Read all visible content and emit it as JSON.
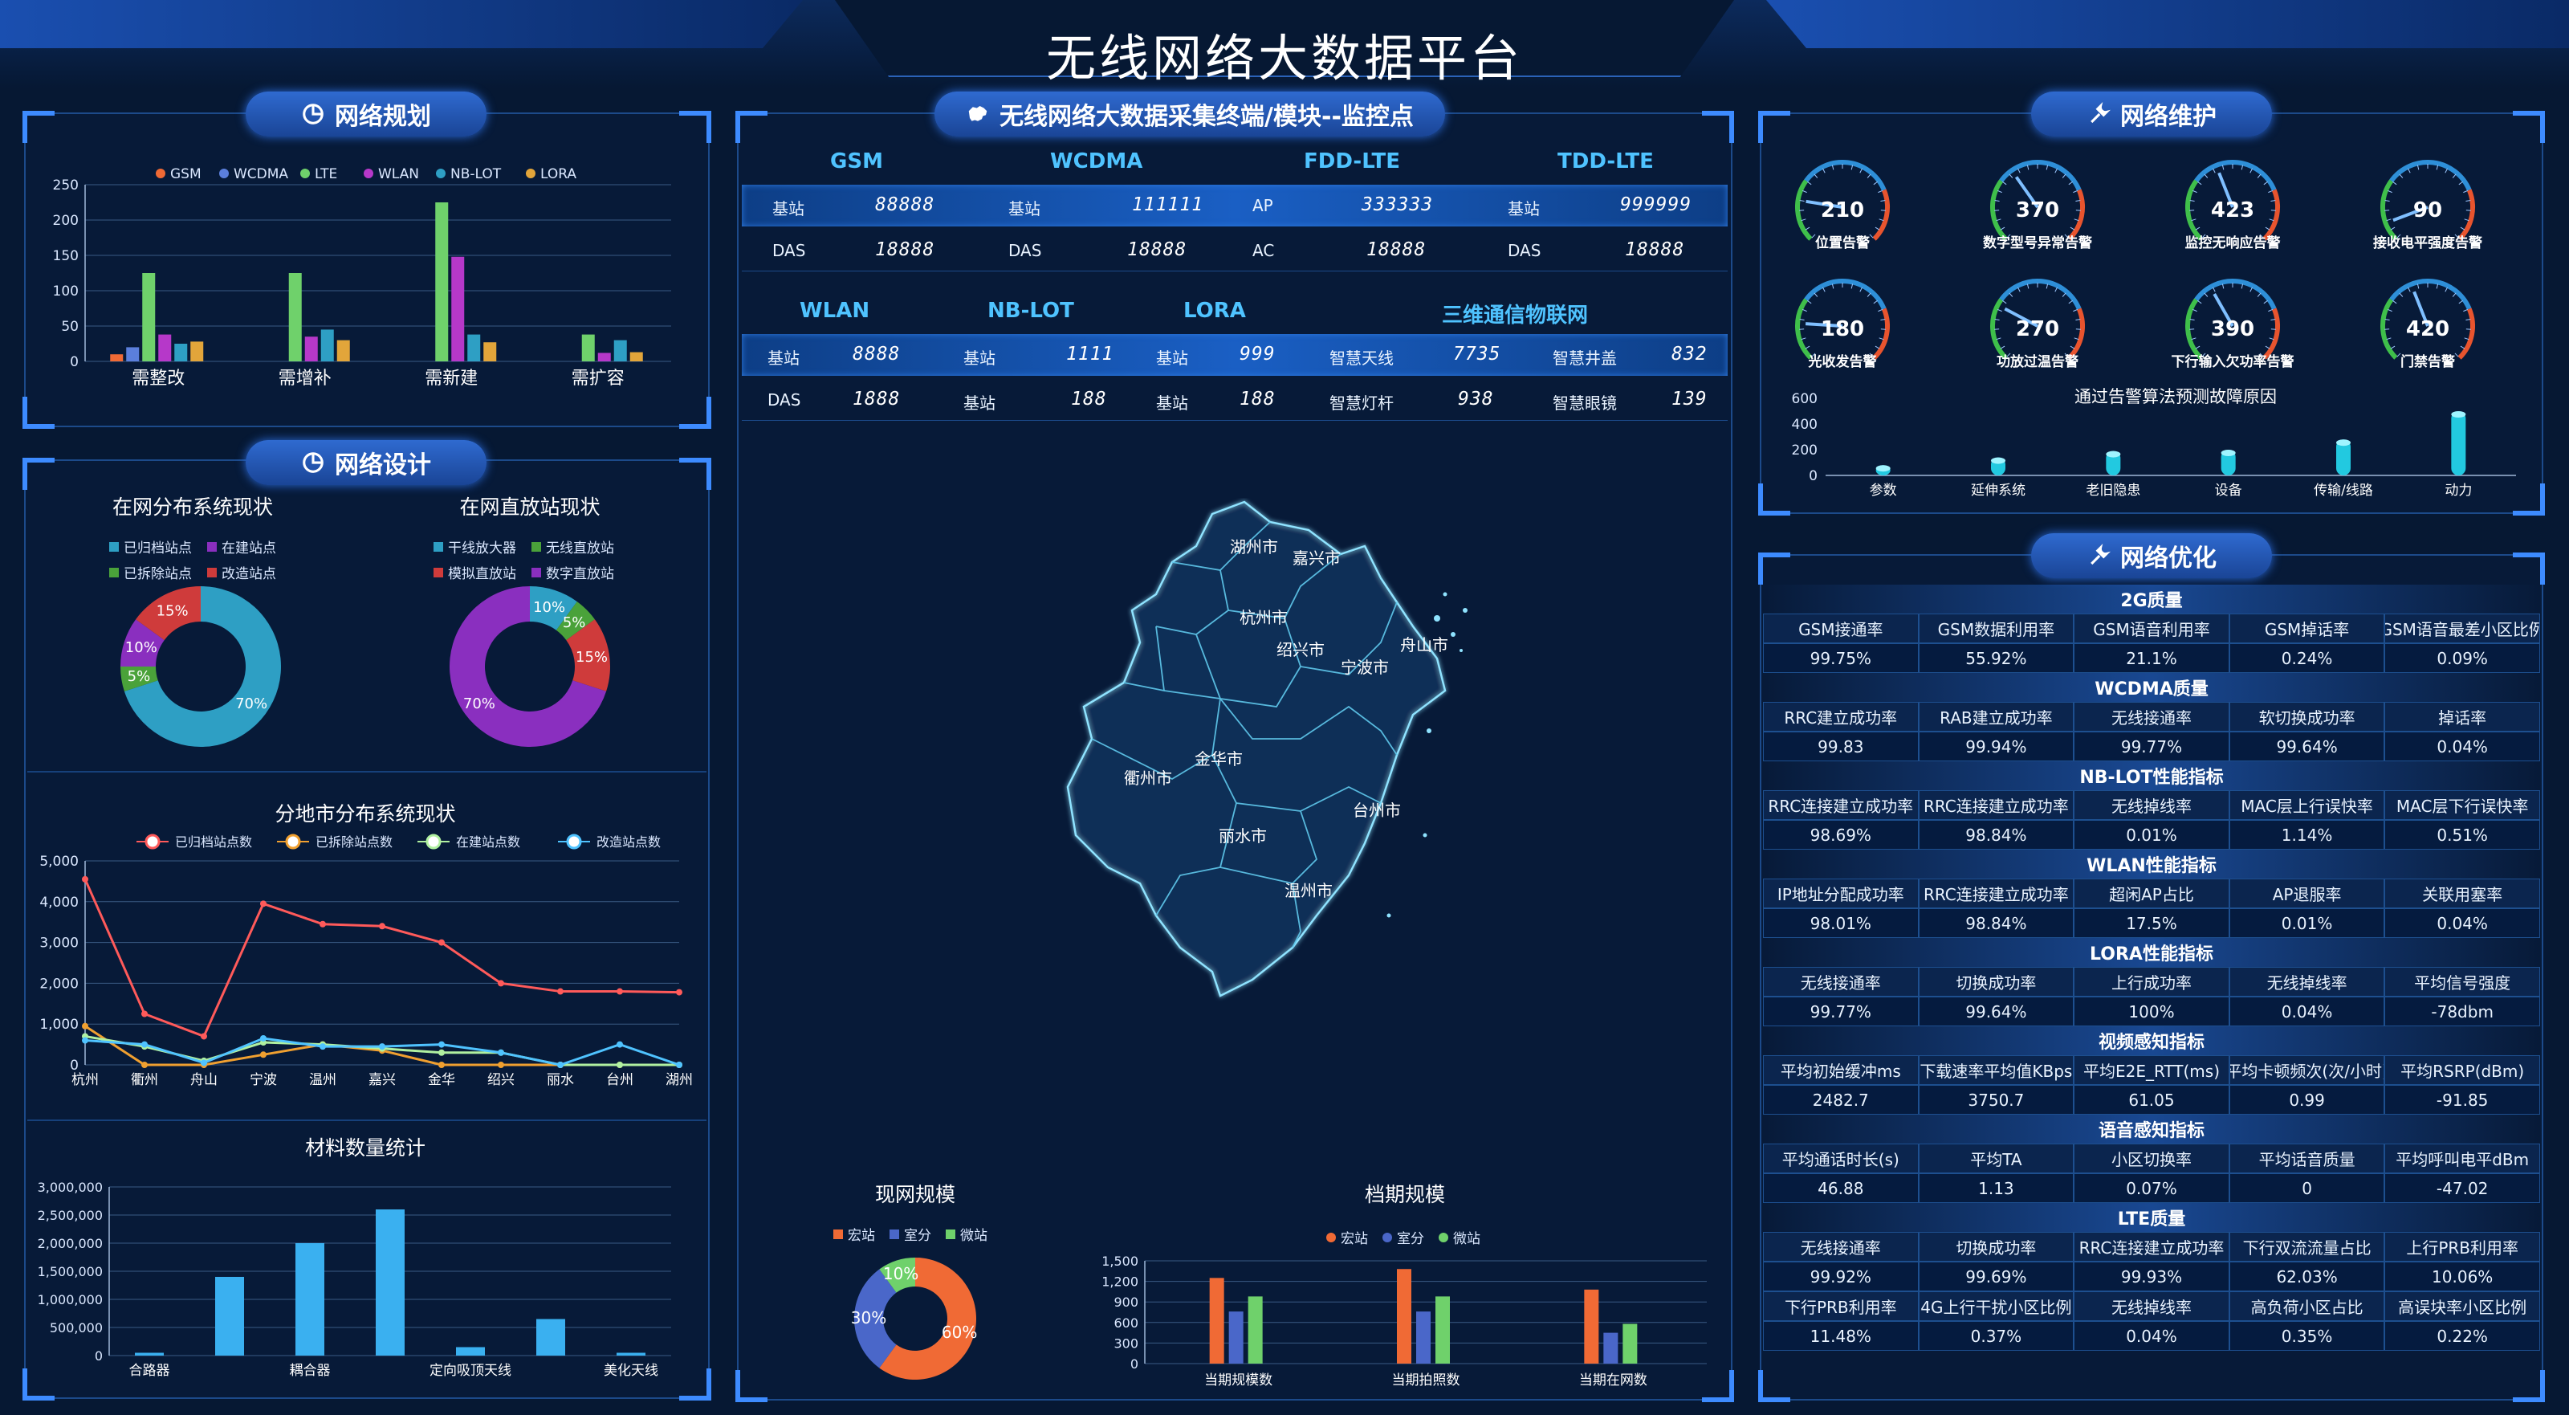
{
  "page_title": "无线网络大数据平台",
  "colors": {
    "accent": "#3d8bff",
    "bg": "#061833",
    "cyan": "#4fc3ff"
  },
  "planning": {
    "title": "网络规划",
    "icon": "pie-chart-icon",
    "chart_data": {
      "type": "bar",
      "categories": [
        "需整改",
        "需增补",
        "需新建",
        "需扩容"
      ],
      "series": [
        {
          "name": "GSM",
          "color": "#f06a35",
          "values": [
            10,
            0,
            0,
            0
          ]
        },
        {
          "name": "WCDMA",
          "color": "#5b7fdc",
          "values": [
            20,
            0,
            0,
            0
          ]
        },
        {
          "name": "LTE",
          "color": "#6fd16b",
          "values": [
            125,
            125,
            225,
            38
          ]
        },
        {
          "name": "WLAN",
          "color": "#b638c9",
          "values": [
            38,
            35,
            148,
            12
          ]
        },
        {
          "name": "NB-LOT",
          "color": "#2e9fc4",
          "values": [
            25,
            45,
            38,
            30
          ]
        },
        {
          "name": "LORA",
          "color": "#e2a53a",
          "values": [
            28,
            30,
            27,
            13
          ]
        }
      ],
      "yticks": [
        "0",
        "50",
        "100",
        "150",
        "200",
        "250"
      ],
      "ylim": [
        0,
        250
      ]
    }
  },
  "design": {
    "title": "网络设计",
    "icon": "pie-chart-icon",
    "donut1": {
      "title": "在网分布系统现状",
      "legend": [
        "已归档站点",
        "在建站点",
        "已拆除站点",
        "改造站点"
      ],
      "chart_data": {
        "type": "pie",
        "slices": [
          {
            "label": "已归档站点",
            "value": 70,
            "color": "#2e9fc4",
            "text": "70%"
          },
          {
            "label": "已拆除站点",
            "value": 5,
            "color": "#4aa23a",
            "text": "5%"
          },
          {
            "label": "在建站点",
            "value": 10,
            "color": "#8a2fbf",
            "text": "10%"
          },
          {
            "label": "改造站点",
            "value": 15,
            "color": "#cf3b3b",
            "text": "15%"
          }
        ]
      },
      "legend_colors": [
        "#2e9fc4",
        "#8a2fbf",
        "#4aa23a",
        "#cf3b3b"
      ]
    },
    "donut2": {
      "title": "在网直放站现状",
      "legend": [
        "干线放大器",
        "无线直放站",
        "模拟直放站",
        "数字直放站"
      ],
      "chart_data": {
        "type": "pie",
        "slices": [
          {
            "label": "干线放大器",
            "value": 10,
            "color": "#2e9fc4",
            "text": "10%"
          },
          {
            "label": "无线直放站",
            "value": 5,
            "color": "#4aa23a",
            "text": "5%"
          },
          {
            "label": "模拟直放站",
            "value": 15,
            "color": "#cf3b3b",
            "text": "15%"
          },
          {
            "label": "数字直放站",
            "value": 70,
            "color": "#8a2fbf",
            "text": "70%"
          }
        ]
      },
      "legend_colors": [
        "#2e9fc4",
        "#4aa23a",
        "#cf3b3b",
        "#8a2fbf"
      ]
    },
    "line": {
      "title": "分地市分布系统现状",
      "chart_data": {
        "type": "line",
        "categories": [
          "杭州",
          "衢州",
          "舟山",
          "宁波",
          "温州",
          "嘉兴",
          "金华",
          "绍兴",
          "丽水",
          "台州",
          "湖州"
        ],
        "series": [
          {
            "name": "已归档站点数",
            "color": "#ff5a5a",
            "values": [
              4550,
              1250,
              700,
              3950,
              3450,
              3400,
              3000,
              2000,
              1800,
              1800,
              1780
            ]
          },
          {
            "name": "已拆除站点数",
            "color": "#f0a030",
            "values": [
              950,
              0,
              0,
              250,
              500,
              350,
              0,
              0,
              0,
              0,
              0
            ]
          },
          {
            "name": "在建站点数",
            "color": "#b0f0a0",
            "values": [
              700,
              450,
              100,
              550,
              500,
              400,
              300,
              300,
              0,
              0,
              0
            ]
          },
          {
            "name": "改造站点数",
            "color": "#4fc3ff",
            "values": [
              600,
              500,
              50,
              650,
              450,
              450,
              500,
              300,
              0,
              500,
              0
            ]
          }
        ],
        "yticks": [
          "0",
          "1,000",
          "2,000",
          "3,000",
          "4,000",
          "5,000"
        ],
        "ylim": [
          0,
          5000
        ]
      }
    },
    "materials": {
      "title": "材料数量统计",
      "chart_data": {
        "type": "bar",
        "categories": [
          "合路器",
          "",
          "耦合器",
          "",
          "定向吸顶天线",
          "",
          "美化天线"
        ],
        "values": [
          50000,
          1400000,
          2000000,
          2600000,
          150000,
          650000,
          50000
        ],
        "yticks": [
          "0",
          "500,000",
          "1,000,000",
          "1,500,000",
          "2,000,000",
          "2,500,000",
          "3,000,000"
        ],
        "ylim": [
          0,
          3000000
        ]
      }
    }
  },
  "monitor": {
    "title": "无线网络大数据采集终端/模块--监控点",
    "icon": "china-map-icon",
    "row1_heads": [
      "GSM",
      "WCDMA",
      "FDD-LTE",
      "TDD-LTE"
    ],
    "row1": [
      {
        "k1": "基站",
        "v1": "88888",
        "k2": "基站",
        "v2": "111111",
        "k3": "AP",
        "v3": "333333",
        "k4": "基站",
        "v4": "999999"
      },
      {
        "k1": "DAS",
        "v1": "18888",
        "k2": "DAS",
        "v2": "18888",
        "k3": "AC",
        "v3": "18888",
        "k4": "DAS",
        "v4": "18888"
      }
    ],
    "row2_heads": [
      "WLAN",
      "NB-LOT",
      "LORA",
      "三维通信物联网"
    ],
    "row2": [
      [
        "基站",
        "8888",
        "基站",
        "1111",
        "基站",
        "999",
        "智慧天线",
        "7735",
        "智慧井盖",
        "832"
      ],
      [
        "DAS",
        "1888",
        "基站",
        "188",
        "基站",
        "188",
        "智慧灯杆",
        "938",
        "智慧眼镜",
        "139"
      ]
    ],
    "cities": [
      "湖州市",
      "嘉兴市",
      "杭州市",
      "绍兴市",
      "宁波市",
      "舟山市",
      "衢州市",
      "金华市",
      "台州市",
      "丽水市",
      "温州市"
    ],
    "scale_pie": {
      "title": "现网规模",
      "legend": [
        "宏站",
        "室分",
        "微站"
      ],
      "chart_data": {
        "type": "pie",
        "slices": [
          {
            "label": "宏站",
            "value": 60,
            "color": "#f06a35",
            "text": "60%"
          },
          {
            "label": "室分",
            "value": 30,
            "color": "#4a67c9",
            "text": "30%"
          },
          {
            "label": "微站",
            "value": 10,
            "color": "#6fd16b",
            "text": "10%"
          }
        ]
      }
    },
    "archive_bar": {
      "title": "档期规模",
      "legend": [
        "宏站",
        "室分",
        "微站"
      ],
      "chart_data": {
        "type": "bar",
        "categories": [
          "当期规模数",
          "当期拍照数",
          "当期在网数"
        ],
        "series": [
          {
            "name": "宏站",
            "color": "#f06a35",
            "values": [
              1250,
              1380,
              1080
            ]
          },
          {
            "name": "室分",
            "color": "#4a67c9",
            "values": [
              760,
              760,
              450
            ]
          },
          {
            "name": "微站",
            "color": "#6fd16b",
            "values": [
              980,
              980,
              580
            ]
          }
        ],
        "yticks": [
          "0",
          "300",
          "600",
          "900",
          "1,200",
          "1,500"
        ],
        "ylim": [
          0,
          1500
        ]
      }
    }
  },
  "maintenance": {
    "title": "网络维护",
    "icon": "wrench-icon",
    "gauges": [
      {
        "value": "210",
        "label": "位置告警",
        "pct": 0.2
      },
      {
        "value": "370",
        "label": "数字型号异常告警",
        "pct": 0.37
      },
      {
        "value": "423",
        "label": "监控无响应告警",
        "pct": 0.42
      },
      {
        "value": "90",
        "label": "接收电平强度告警",
        "pct": 0.09
      },
      {
        "value": "180",
        "label": "光收发告警",
        "pct": 0.18
      },
      {
        "value": "270",
        "label": "功放过温告警",
        "pct": 0.27
      },
      {
        "value": "390",
        "label": "下行输入欠功率告警",
        "pct": 0.39
      },
      {
        "value": "420",
        "label": "门禁告警",
        "pct": 0.42
      }
    ],
    "fault_chart": {
      "title": "通过告警算法预测故障原因",
      "chart_data": {
        "type": "bar",
        "categories": [
          "参数",
          "延伸系统",
          "老旧隐患",
          "设备",
          "传输/线路",
          "动力"
        ],
        "values": [
          80,
          140,
          190,
          200,
          280,
          500
        ],
        "yticks": [
          "0",
          "200",
          "400",
          "600"
        ],
        "ylim": [
          0,
          600
        ]
      }
    }
  },
  "optimization": {
    "title": "网络优化",
    "icon": "wrench-icon",
    "sections": [
      {
        "name": "2G质量",
        "rows": [
          [
            "GSM接通率",
            "GSM数据利用率",
            "GSM语音利用率",
            "GSM掉话率",
            "GSM语音最差小区比例"
          ],
          [
            "99.75%",
            "55.92%",
            "21.1%",
            "0.24%",
            "0.09%"
          ]
        ]
      },
      {
        "name": "WCDMA质量",
        "rows": [
          [
            "RRC建立成功率",
            "RAB建立成功率",
            "无线接通率",
            "软切换成功率",
            "掉话率"
          ],
          [
            "99.83",
            "99.94%",
            "99.77%",
            "99.64%",
            "0.04%"
          ]
        ]
      },
      {
        "name": "NB-LOT性能指标",
        "rows": [
          [
            "RRC连接建立成功率",
            "RRC连接建立成功率",
            "无线掉线率",
            "MAC层上行误快率",
            "MAC层下行误快率"
          ],
          [
            "98.69%",
            "98.84%",
            "0.01%",
            "1.14%",
            "0.51%"
          ]
        ]
      },
      {
        "name": "WLAN性能指标",
        "rows": [
          [
            "IP地址分配成功率",
            "RRC连接建立成功率",
            "超闲AP占比",
            "AP退服率",
            "关联用塞率"
          ],
          [
            "98.01%",
            "98.84%",
            "17.5%",
            "0.01%",
            "0.04%"
          ]
        ]
      },
      {
        "name": "LORA性能指标",
        "rows": [
          [
            "无线接通率",
            "切换成功率",
            "上行成功率",
            "无线掉线率",
            "平均信号强度"
          ],
          [
            "99.77%",
            "99.64%",
            "100%",
            "0.04%",
            "-78dbm"
          ]
        ]
      },
      {
        "name": "视频感知指标",
        "rows": [
          [
            "平均初始缓冲ms",
            "下载速率平均值KBps",
            "平均E2E_RTT(ms)",
            "平均卡顿频次(次/小时)",
            "平均RSRP(dBm)"
          ],
          [
            "2482.7",
            "3750.7",
            "61.05",
            "0.99",
            "-91.85"
          ]
        ]
      },
      {
        "name": "语音感知指标",
        "rows": [
          [
            "平均通话时长(s)",
            "平均TA",
            "小区切换率",
            "平均话音质量",
            "平均呼叫电平dBm"
          ],
          [
            "46.88",
            "1.13",
            "0.07%",
            "0",
            "-47.02"
          ]
        ]
      },
      {
        "name": "LTE质量",
        "rows": [
          [
            "无线接通率",
            "切换成功率",
            "RRC连接建立成功率",
            "下行双流流量占比",
            "上行PRB利用率"
          ],
          [
            "99.92%",
            "99.69%",
            "99.93%",
            "62.03%",
            "10.06%"
          ],
          [
            "下行PRB利用率",
            "4G上行干扰小区比例",
            "无线掉线率",
            "高负荷小区占比",
            "高误块率小区比例"
          ],
          [
            "11.48%",
            "0.37%",
            "0.04%",
            "0.35%",
            "0.22%"
          ]
        ]
      }
    ]
  }
}
